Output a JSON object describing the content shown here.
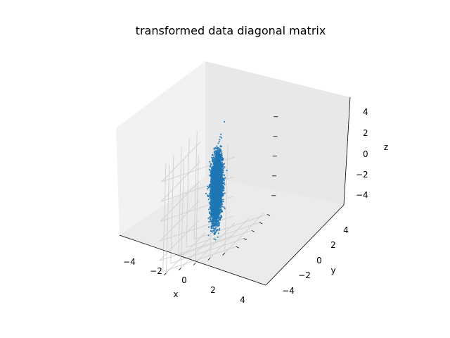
{
  "chart_data": {
    "type": "scatter",
    "projection": "3d",
    "title": "transformed data diagonal matrix",
    "xlabel": "x",
    "ylabel": "y",
    "zlabel": "z",
    "xlim": [
      -5,
      5
    ],
    "ylim": [
      -5,
      5
    ],
    "zlim": [
      -5.5,
      5.5
    ],
    "xticks": [
      "−4",
      "−2",
      "0",
      "2",
      "4"
    ],
    "yticks": [
      "−4",
      "−2",
      "0",
      "2",
      "4"
    ],
    "zticks": [
      "4",
      "2",
      "0",
      "−2",
      "−4"
    ],
    "grid": true,
    "marker_color": "#1f77b4",
    "pane_colors": [
      "#f2f2f2",
      "#e8e8e8",
      "#ebebeb"
    ],
    "series": [
      {
        "distribution": "gaussian",
        "n_points": 10000,
        "mean": [
          0,
          0,
          0
        ],
        "std": [
          0.3,
          0.3,
          1.5
        ]
      }
    ]
  }
}
